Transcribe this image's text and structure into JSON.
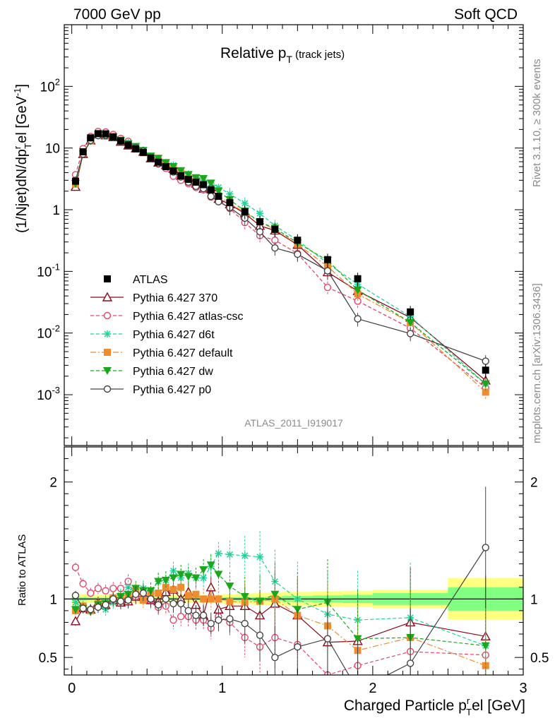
{
  "header": {
    "left": "7000 GeV pp",
    "right": "Soft QCD",
    "side_rivet": "Rivet 3.1.10, ≥ 300k events",
    "side_mcplots": "mcplots.cern.ch [arXiv:1306.3436]",
    "analysis_id": "ATLAS_2011_I919017"
  },
  "main_title": {
    "text": "Relative p",
    "sub": "T",
    "paren": " (track jets)"
  },
  "xlabel": {
    "pre": "Charged Particle p",
    "sub": "T",
    "sup": "r",
    "post": "el [GeV]"
  },
  "ylabel": {
    "text": "(1/Njet)dN/dp",
    "sup": "r",
    "sub": "T",
    "post": "el [GeV",
    "sup2": "-1",
    "close": "]"
  },
  "ratio_ylabel": "Ratio to ATLAS",
  "colors": {
    "atlas": "#000000",
    "p370": "#8b0a1e",
    "atlascsc": "#e8436a",
    "d6t": "#1fd39b",
    "default": "#f08c2e",
    "dw": "#1aa81a",
    "p0": "#444444",
    "band_yellow": "#ffff80",
    "band_green": "#80ff80"
  },
  "chart_data": [
    {
      "type": "scatter",
      "panel": "main",
      "yscale": "log",
      "xlim": [
        -0.05,
        3.0
      ],
      "ylim": [
        0.00015,
        1000
      ],
      "ytick_labels": [
        "10^-3",
        "10^-2",
        "10^-1",
        "1",
        "10",
        "10^2"
      ],
      "xtick_labels": [
        "0",
        "1",
        "2",
        "3"
      ],
      "legend_position": "center-left",
      "series": [
        {
          "key": "atlas",
          "name": "ATLAS",
          "marker": "square",
          "style": "none",
          "x": [
            0.025,
            0.075,
            0.125,
            0.175,
            0.225,
            0.275,
            0.325,
            0.375,
            0.425,
            0.475,
            0.525,
            0.575,
            0.625,
            0.675,
            0.725,
            0.775,
            0.825,
            0.875,
            0.925,
            0.975,
            1.05,
            1.15,
            1.25,
            1.35,
            1.5,
            1.7,
            1.9,
            2.25,
            2.75
          ],
          "y": [
            2.9,
            8.7,
            14.6,
            17.1,
            17.0,
            15.2,
            13.1,
            11.2,
            9.7,
            8.5,
            6.9,
            5.9,
            5.0,
            4.25,
            3.55,
            3.1,
            2.8,
            2.55,
            2.1,
            1.65,
            1.3,
            0.93,
            0.64,
            0.48,
            0.32,
            0.155,
            0.076,
            0.022,
            0.0025
          ]
        },
        {
          "key": "p370",
          "name": "Pythia 6.427 370",
          "marker": "triangle-up-open",
          "style": "solid",
          "x": [
            0.025,
            0.075,
            0.125,
            0.175,
            0.225,
            0.275,
            0.325,
            0.375,
            0.425,
            0.475,
            0.525,
            0.575,
            0.625,
            0.675,
            0.725,
            0.775,
            0.825,
            0.875,
            0.925,
            0.975,
            1.05,
            1.15,
            1.25,
            1.35,
            1.5,
            1.7,
            1.9,
            2.25,
            2.75
          ],
          "y": [
            2.35,
            8.0,
            13.3,
            16.6,
            16.1,
            15.0,
            12.7,
            11.0,
            9.9,
            8.7,
            6.8,
            5.8,
            5.3,
            4.6,
            3.55,
            3.3,
            2.65,
            2.2,
            2.3,
            1.5,
            1.22,
            0.87,
            0.55,
            0.46,
            0.27,
            0.097,
            0.048,
            0.0178,
            0.0017
          ]
        },
        {
          "key": "atlascsc",
          "name": "Pythia 6.427 atlas-csc",
          "marker": "circle-open",
          "style": "dashed",
          "x": [
            0.025,
            0.075,
            0.125,
            0.175,
            0.225,
            0.275,
            0.325,
            0.375,
            0.425,
            0.475,
            0.525,
            0.575,
            0.625,
            0.675,
            0.725,
            0.775,
            0.825,
            0.875,
            0.925,
            0.975,
            1.05,
            1.15,
            1.25,
            1.35,
            1.5,
            1.7,
            1.9,
            2.25,
            2.75
          ],
          "y": [
            3.7,
            9.8,
            15.4,
            18.6,
            18.2,
            16.6,
            14.3,
            12.9,
            9.9,
            8.9,
            6.8,
            5.5,
            4.7,
            3.5,
            3.0,
            2.65,
            2.3,
            2.1,
            1.6,
            1.4,
            1.05,
            0.62,
            0.38,
            0.32,
            0.195,
            0.055,
            0.033,
            0.012,
            0.0013
          ]
        },
        {
          "key": "d6t",
          "name": "Pythia 6.427 d6t",
          "marker": "star",
          "style": "dashed",
          "x": [
            0.025,
            0.075,
            0.125,
            0.175,
            0.225,
            0.275,
            0.325,
            0.375,
            0.425,
            0.475,
            0.525,
            0.575,
            0.625,
            0.675,
            0.725,
            0.775,
            0.825,
            0.875,
            0.925,
            0.975,
            1.05,
            1.15,
            1.25,
            1.35,
            1.5,
            1.7,
            1.9,
            2.25,
            2.75
          ],
          "y": [
            2.8,
            8.2,
            13.3,
            16.0,
            15.5,
            14.7,
            13.5,
            12.3,
            10.3,
            9.3,
            7.4,
            6.8,
            5.8,
            5.3,
            4.2,
            3.8,
            3.3,
            3.0,
            2.7,
            2.3,
            1.8,
            1.27,
            0.87,
            0.55,
            0.32,
            0.135,
            0.062,
            0.0185,
            0.0015
          ]
        },
        {
          "key": "default",
          "name": "Pythia 6.427 default",
          "marker": "square",
          "style": "dashdot",
          "x": [
            0.025,
            0.075,
            0.125,
            0.175,
            0.225,
            0.275,
            0.325,
            0.375,
            0.425,
            0.475,
            0.525,
            0.575,
            0.625,
            0.675,
            0.725,
            0.775,
            0.825,
            0.875,
            0.925,
            0.975,
            1.05,
            1.15,
            1.25,
            1.35,
            1.5,
            1.7,
            1.9,
            2.25,
            2.75
          ],
          "y": [
            2.6,
            8.2,
            13.1,
            16.5,
            16.3,
            15.3,
            13.0,
            11.5,
            10.4,
            8.4,
            7.2,
            6.2,
            5.5,
            4.6,
            3.9,
            3.2,
            2.9,
            2.55,
            2.1,
            1.65,
            1.27,
            0.9,
            0.63,
            0.48,
            0.275,
            0.12,
            0.043,
            0.0148,
            0.0011
          ]
        },
        {
          "key": "dw",
          "name": "Pythia 6.427 dw",
          "marker": "triangle-down",
          "style": "dashed",
          "x": [
            0.025,
            0.075,
            0.125,
            0.175,
            0.225,
            0.275,
            0.325,
            0.375,
            0.425,
            0.475,
            0.525,
            0.575,
            0.625,
            0.675,
            0.725,
            0.775,
            0.825,
            0.875,
            0.925,
            0.975,
            1.05,
            1.15,
            1.25,
            1.35,
            1.5,
            1.7,
            1.9,
            2.25,
            2.75
          ],
          "y": [
            2.65,
            8.0,
            13.0,
            16.2,
            16.3,
            15.0,
            13.3,
            11.7,
            10.6,
            9.1,
            7.4,
            6.8,
            5.8,
            5.0,
            4.3,
            3.7,
            3.3,
            3.2,
            2.7,
            2.0,
            1.45,
            0.95,
            0.63,
            0.5,
            0.29,
            0.15,
            0.05,
            0.0148,
            0.0015
          ]
        },
        {
          "key": "p0",
          "name": "Pythia 6.427 p0",
          "marker": "circle-open",
          "style": "solid",
          "x": [
            0.025,
            0.075,
            0.125,
            0.175,
            0.225,
            0.275,
            0.325,
            0.375,
            0.425,
            0.475,
            0.525,
            0.575,
            0.625,
            0.675,
            0.725,
            0.775,
            0.825,
            0.875,
            0.925,
            0.975,
            1.05,
            1.15,
            1.25,
            1.35,
            1.5,
            1.7,
            1.9,
            2.25,
            2.75
          ],
          "y": [
            3.0,
            8.0,
            13.3,
            15.9,
            16.1,
            15.2,
            12.8,
            11.1,
            10.1,
            8.9,
            6.9,
            5.6,
            5.0,
            4.1,
            3.4,
            2.8,
            2.4,
            2.2,
            1.65,
            1.35,
            1.08,
            0.73,
            0.44,
            0.24,
            0.19,
            0.102,
            0.017,
            0.0098,
            0.0035
          ]
        }
      ]
    },
    {
      "type": "line",
      "panel": "ratio",
      "ylim": [
        0.35,
        2.3
      ],
      "xlim": [
        -0.05,
        3.0
      ],
      "ytick_labels": [
        "0.5",
        "1",
        "2"
      ],
      "band_edges": [
        0.0,
        0.05,
        0.1,
        0.15,
        0.2,
        0.25,
        0.3,
        0.35,
        0.4,
        0.45,
        0.5,
        0.55,
        0.6,
        0.65,
        0.7,
        0.75,
        0.8,
        0.85,
        0.9,
        0.95,
        1.0,
        1.1,
        1.2,
        1.3,
        1.4,
        1.6,
        1.8,
        2.0,
        2.5,
        3.0
      ],
      "band_yellow_halfwidth": [
        0.05,
        0.04,
        0.035,
        0.035,
        0.035,
        0.035,
        0.035,
        0.035,
        0.035,
        0.035,
        0.035,
        0.035,
        0.035,
        0.035,
        0.035,
        0.035,
        0.035,
        0.035,
        0.035,
        0.035,
        0.04,
        0.045,
        0.05,
        0.055,
        0.06,
        0.065,
        0.07,
        0.08,
        0.18
      ],
      "band_green_halfwidth": [
        0.02,
        0.015,
        0.012,
        0.012,
        0.012,
        0.012,
        0.012,
        0.012,
        0.012,
        0.012,
        0.012,
        0.012,
        0.012,
        0.012,
        0.012,
        0.012,
        0.012,
        0.012,
        0.012,
        0.012,
        0.014,
        0.015,
        0.017,
        0.02,
        0.025,
        0.03,
        0.035,
        0.05,
        0.1
      ],
      "series": [
        {
          "key": "p370",
          "values": [
            0.81,
            0.92,
            0.91,
            0.97,
            0.95,
            0.99,
            0.97,
            0.98,
            1.02,
            1.02,
            0.99,
            0.98,
            1.06,
            1.08,
            1.0,
            1.06,
            0.95,
            0.86,
            1.1,
            0.91,
            0.94,
            0.94,
            0.86,
            0.96,
            0.86,
            0.63,
            0.64,
            0.8,
            0.68
          ]
        },
        {
          "key": "atlascsc",
          "values": [
            1.27,
            1.13,
            1.05,
            1.09,
            1.07,
            1.09,
            1.09,
            1.15,
            1.02,
            1.05,
            0.99,
            0.93,
            0.94,
            0.82,
            0.85,
            0.85,
            0.82,
            0.82,
            0.75,
            0.85,
            0.8,
            0.67,
            0.59,
            0.67,
            0.61,
            0.35,
            0.43,
            0.55,
            0.52
          ]
        },
        {
          "key": "d6t",
          "values": [
            0.97,
            0.94,
            0.91,
            0.94,
            0.91,
            0.97,
            1.03,
            1.1,
            1.06,
            1.09,
            1.07,
            1.15,
            1.16,
            1.24,
            1.18,
            1.22,
            1.18,
            1.18,
            1.28,
            1.39,
            1.38,
            1.37,
            1.36,
            1.15,
            1.0,
            0.87,
            0.82,
            0.84,
            0.6
          ]
        },
        {
          "key": "default",
          "values": [
            0.9,
            0.94,
            0.9,
            0.96,
            0.96,
            1.01,
            0.99,
            1.03,
            1.07,
            0.99,
            1.04,
            1.05,
            1.1,
            1.08,
            1.1,
            1.03,
            1.04,
            1.0,
            1.0,
            1.0,
            0.98,
            0.97,
            0.98,
            1.0,
            0.86,
            0.77,
            0.56,
            0.67,
            0.43
          ]
        },
        {
          "key": "dw",
          "values": [
            0.91,
            0.92,
            0.89,
            0.95,
            0.96,
            0.99,
            1.02,
            1.04,
            1.09,
            1.07,
            1.07,
            1.15,
            1.16,
            1.18,
            1.21,
            1.19,
            1.18,
            1.25,
            1.29,
            1.21,
            1.11,
            1.02,
            0.98,
            1.04,
            0.91,
            0.97,
            0.66,
            0.67,
            0.6
          ]
        },
        {
          "key": "p0",
          "values": [
            1.03,
            0.92,
            0.91,
            0.93,
            0.95,
            1.0,
            0.98,
            0.99,
            1.04,
            1.05,
            1.0,
            0.95,
            1.0,
            0.96,
            0.96,
            0.9,
            0.86,
            0.86,
            0.79,
            0.82,
            0.83,
            0.79,
            0.69,
            0.5,
            0.59,
            0.66,
            0.22,
            0.45,
            1.44
          ]
        }
      ]
    }
  ]
}
